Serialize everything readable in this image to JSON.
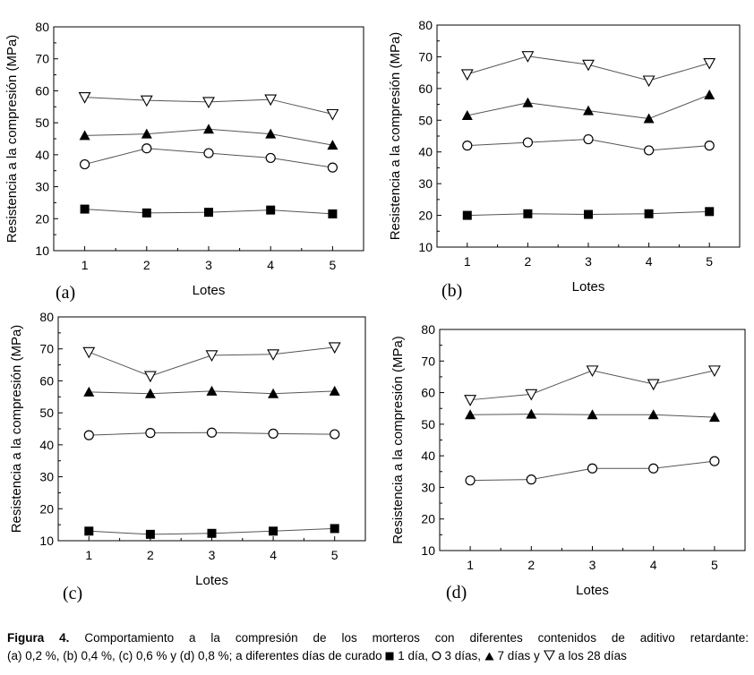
{
  "chart_data": [
    {
      "type": "line",
      "panel_label": "(a)",
      "xlabel": "Lotes",
      "ylabel": "Resistencia a la compresión (MPa)",
      "xlim": [
        0.5,
        5.5
      ],
      "ylim": [
        10,
        80
      ],
      "x": [
        1,
        2,
        3,
        4,
        5
      ],
      "xticks": [
        "1",
        "2",
        "3",
        "4",
        "5"
      ],
      "yticks": [
        "10",
        "20",
        "30",
        "40",
        "50",
        "60",
        "70",
        "80"
      ],
      "series": [
        {
          "marker": "filled-square",
          "values": [
            23,
            21.8,
            22,
            22.7,
            21.5
          ]
        },
        {
          "marker": "open-circle",
          "values": [
            37,
            42,
            40.5,
            39,
            36
          ]
        },
        {
          "marker": "filled-triangle-up",
          "values": [
            46,
            46.5,
            48,
            46.5,
            43
          ]
        },
        {
          "marker": "open-triangle-down",
          "values": [
            58,
            57,
            56.5,
            57.3,
            52.7
          ]
        }
      ]
    },
    {
      "type": "line",
      "panel_label": "(b)",
      "xlabel": "Lotes",
      "ylabel": "Resistencia a la compresión (MPa)",
      "xlim": [
        0.5,
        5.5
      ],
      "ylim": [
        10,
        80
      ],
      "x": [
        1,
        2,
        3,
        4,
        5
      ],
      "xticks": [
        "1",
        "2",
        "3",
        "4",
        "5"
      ],
      "yticks": [
        "10",
        "20",
        "30",
        "40",
        "50",
        "60",
        "70",
        "80"
      ],
      "series": [
        {
          "marker": "filled-square",
          "values": [
            20,
            20.5,
            20.3,
            20.5,
            21.2
          ]
        },
        {
          "marker": "open-circle",
          "values": [
            42,
            43,
            44,
            40.5,
            42
          ]
        },
        {
          "marker": "filled-triangle-up",
          "values": [
            51.5,
            55.5,
            53,
            50.5,
            58
          ]
        },
        {
          "marker": "open-triangle-down",
          "values": [
            64.5,
            70.2,
            67.5,
            62.5,
            68
          ]
        }
      ]
    },
    {
      "type": "line",
      "panel_label": "(c)",
      "xlabel": "Lotes",
      "ylabel": "Resistencia a la compresión (MPa)",
      "xlim": [
        0.5,
        5.5
      ],
      "ylim": [
        10,
        80
      ],
      "x": [
        1,
        2,
        3,
        4,
        5
      ],
      "xticks": [
        "1",
        "2",
        "3",
        "4",
        "5"
      ],
      "yticks": [
        "10",
        "20",
        "30",
        "40",
        "50",
        "60",
        "70",
        "80"
      ],
      "series": [
        {
          "marker": "filled-square",
          "values": [
            13,
            12,
            12.3,
            13,
            13.8
          ]
        },
        {
          "marker": "open-circle",
          "values": [
            43,
            43.7,
            43.8,
            43.5,
            43.3
          ]
        },
        {
          "marker": "filled-triangle-up",
          "values": [
            56.5,
            56,
            56.8,
            56,
            56.8
          ]
        },
        {
          "marker": "open-triangle-down",
          "values": [
            69,
            61.5,
            68,
            68.3,
            70.5
          ]
        }
      ]
    },
    {
      "type": "line",
      "panel_label": "(d)",
      "xlabel": "Lotes",
      "ylabel": "Resistencia a la compresión (MPa)",
      "xlim": [
        0.5,
        5.5
      ],
      "ylim": [
        10,
        80
      ],
      "x": [
        1,
        2,
        3,
        4,
        5
      ],
      "xticks": [
        "1",
        "2",
        "3",
        "4",
        "5"
      ],
      "yticks": [
        "10",
        "20",
        "30",
        "40",
        "50",
        "60",
        "70",
        "80"
      ],
      "series": [
        {
          "marker": "open-circle",
          "values": [
            32.2,
            32.5,
            36,
            36,
            38.3
          ]
        },
        {
          "marker": "filled-triangle-up",
          "values": [
            53,
            53.2,
            53,
            53,
            52.2
          ]
        },
        {
          "marker": "open-triangle-down",
          "values": [
            57.7,
            59.5,
            67,
            62.7,
            67
          ]
        }
      ]
    }
  ],
  "caption": {
    "label": "Figura 4.",
    "line1_text": " Comportamiento a la compresión de los morteros con diferentes contenidos de aditivo retardante:",
    "line2_prefix": "(a) 0,2 %, (b) 0,4 %, (c) 0,6 % y (d) 0,8 %; a diferentes días de curado ",
    "legend_1dia": " 1 día, ",
    "legend_3dias": " 3 días, ",
    "legend_7dias": " 7 días y ",
    "legend_28dias": " a los 28 días"
  },
  "colors": {
    "ink": "#000000",
    "line": "#555555",
    "background": "#ffffff"
  }
}
